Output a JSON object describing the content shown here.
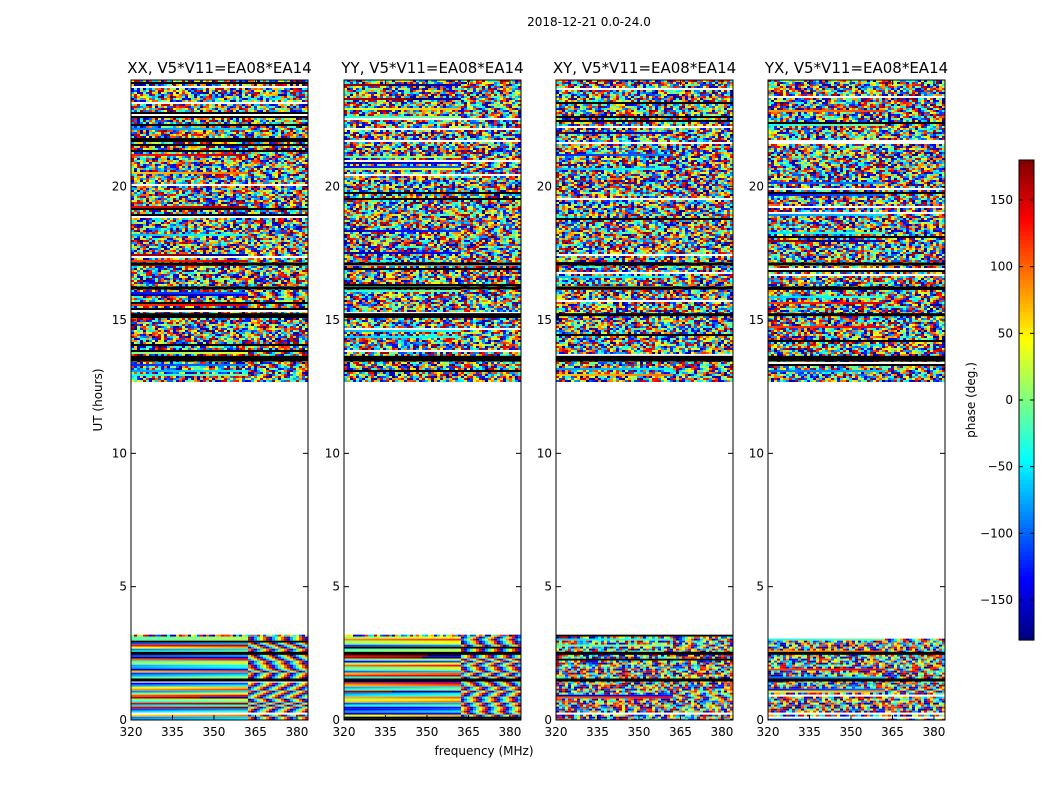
{
  "chart_data": {
    "type": "heatmap",
    "suptitle": "2018-12-21 0.0-24.0",
    "xlabel": "frequency (MHz)",
    "ylabel": "UT (hours)",
    "xlim": [
      320,
      384
    ],
    "ylim": [
      0,
      24
    ],
    "xticks": [
      320,
      335,
      350,
      365,
      380
    ],
    "yticks": [
      0,
      5,
      10,
      15,
      20
    ],
    "panels": [
      {
        "title": "XX, V5*V11=EA08*EA14"
      },
      {
        "title": "YY, V5*V11=EA08*EA14"
      },
      {
        "title": "XY, V5*V11=EA08*EA14"
      },
      {
        "title": "YX, V5*V11=EA08*EA14"
      }
    ],
    "data_blocks_ut_hours": [
      [
        0,
        3.2
      ],
      [
        12.7,
        24
      ]
    ],
    "blank_ut_hours": [
      3.2,
      12.7
    ],
    "colorbar": {
      "label": "phase (deg.)",
      "range": [
        -180,
        180
      ],
      "ticks": [
        -150,
        -100,
        -50,
        0,
        50,
        100,
        150
      ],
      "colormap": "jet"
    }
  }
}
